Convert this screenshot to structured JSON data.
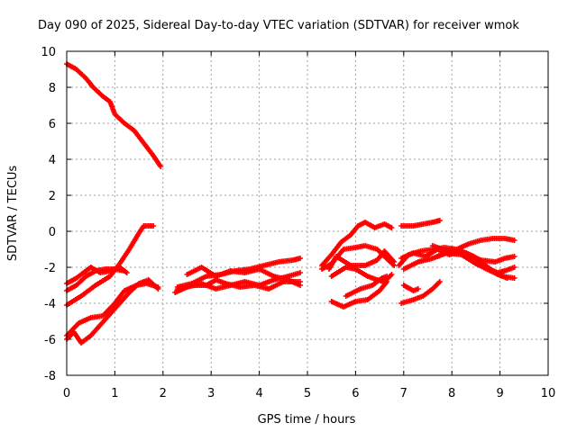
{
  "chart_data": {
    "type": "scatter",
    "title": "Day 090 of 2025, Sidereal Day-to-day VTEC variation (SDTVAR) for receiver wmok",
    "xlabel": "GPS time / hours",
    "ylabel": "SDTVAR / TECUs",
    "xlim": [
      0,
      10
    ],
    "ylim": [
      -8,
      10
    ],
    "xticks": [
      "0",
      "1",
      "2",
      "3",
      "4",
      "5",
      "6",
      "7",
      "8",
      "9",
      "10"
    ],
    "yticks": [
      "10",
      "8",
      "6",
      "4",
      "2",
      "0",
      "-2",
      "-4",
      "-6",
      "-8"
    ],
    "grid": true,
    "marker": "plus",
    "color": "#ff0000",
    "series": [
      {
        "points": [
          [
            0.0,
            9.3
          ],
          [
            0.2,
            9.0
          ],
          [
            0.4,
            8.5
          ],
          [
            0.55,
            8.0
          ],
          [
            0.75,
            7.5
          ],
          [
            0.9,
            7.2
          ],
          [
            1.0,
            6.5
          ],
          [
            1.2,
            6.0
          ],
          [
            1.4,
            5.6
          ],
          [
            1.6,
            4.9
          ],
          [
            1.8,
            4.2
          ],
          [
            1.95,
            3.6
          ]
        ]
      },
      {
        "points": [
          [
            0.0,
            -4.1
          ],
          [
            0.3,
            -3.6
          ],
          [
            0.6,
            -3.0
          ],
          [
            0.9,
            -2.5
          ],
          [
            1.1,
            -1.8
          ],
          [
            1.3,
            -1.0
          ],
          [
            1.5,
            -0.1
          ],
          [
            1.6,
            0.3
          ],
          [
            1.8,
            0.3
          ]
        ]
      },
      {
        "points": [
          [
            0.0,
            -3.3
          ],
          [
            0.2,
            -3.0
          ],
          [
            0.4,
            -2.5
          ],
          [
            0.6,
            -2.2
          ],
          [
            0.8,
            -2.1
          ],
          [
            1.0,
            -2.1
          ],
          [
            1.2,
            -2.2
          ]
        ]
      },
      {
        "points": [
          [
            0.0,
            -2.9
          ],
          [
            0.2,
            -2.6
          ],
          [
            0.4,
            -2.2
          ],
          [
            0.5,
            -2.0
          ],
          [
            0.7,
            -2.3
          ],
          [
            0.9,
            -2.2
          ],
          [
            1.1,
            -2.0
          ],
          [
            1.25,
            -2.3
          ]
        ]
      },
      {
        "points": [
          [
            0.0,
            -6.0
          ],
          [
            0.15,
            -5.6
          ],
          [
            0.3,
            -6.2
          ],
          [
            0.5,
            -5.8
          ],
          [
            0.7,
            -5.2
          ],
          [
            0.9,
            -4.6
          ],
          [
            1.1,
            -4.0
          ],
          [
            1.3,
            -3.4
          ],
          [
            1.5,
            -2.9
          ],
          [
            1.7,
            -2.7
          ],
          [
            1.9,
            -3.2
          ]
        ]
      },
      {
        "points": [
          [
            0.0,
            -5.8
          ],
          [
            0.25,
            -5.1
          ],
          [
            0.5,
            -4.8
          ],
          [
            0.75,
            -4.7
          ],
          [
            1.0,
            -4.0
          ],
          [
            1.2,
            -3.3
          ],
          [
            1.45,
            -3.0
          ],
          [
            1.65,
            -2.9
          ],
          [
            1.9,
            -3.1
          ]
        ]
      },
      {
        "points": [
          [
            2.25,
            -3.4
          ],
          [
            2.5,
            -3.1
          ],
          [
            2.8,
            -2.9
          ],
          [
            3.1,
            -3.2
          ],
          [
            3.4,
            -3.0
          ],
          [
            3.7,
            -2.8
          ],
          [
            4.0,
            -3.0
          ],
          [
            4.3,
            -2.7
          ],
          [
            4.6,
            -2.5
          ],
          [
            4.85,
            -2.3
          ]
        ]
      },
      {
        "points": [
          [
            2.3,
            -3.1
          ],
          [
            2.6,
            -2.9
          ],
          [
            2.9,
            -2.5
          ],
          [
            3.2,
            -2.4
          ],
          [
            3.5,
            -2.2
          ],
          [
            3.8,
            -2.1
          ],
          [
            4.1,
            -1.9
          ],
          [
            4.4,
            -1.7
          ],
          [
            4.7,
            -1.6
          ],
          [
            4.85,
            -1.5
          ]
        ]
      },
      {
        "points": [
          [
            2.3,
            -3.2
          ],
          [
            2.6,
            -3.0
          ],
          [
            2.9,
            -3.0
          ],
          [
            3.1,
            -2.7
          ],
          [
            3.3,
            -2.9
          ],
          [
            3.6,
            -3.1
          ],
          [
            3.9,
            -3.0
          ],
          [
            4.2,
            -3.2
          ],
          [
            4.5,
            -2.8
          ],
          [
            4.85,
            -2.8
          ]
        ]
      },
      {
        "points": [
          [
            2.5,
            -2.4
          ],
          [
            2.8,
            -2.0
          ],
          [
            3.1,
            -2.5
          ],
          [
            3.4,
            -2.2
          ],
          [
            3.7,
            -2.3
          ],
          [
            4.0,
            -2.1
          ],
          [
            4.3,
            -2.5
          ],
          [
            4.6,
            -2.7
          ],
          [
            4.85,
            -3.0
          ]
        ]
      },
      {
        "points": [
          [
            5.3,
            -1.9
          ],
          [
            5.5,
            -1.3
          ],
          [
            5.7,
            -0.6
          ],
          [
            5.9,
            -0.2
          ],
          [
            6.05,
            0.3
          ],
          [
            6.2,
            0.5
          ],
          [
            6.4,
            0.2
          ],
          [
            6.6,
            0.4
          ],
          [
            6.75,
            0.2
          ]
        ]
      },
      {
        "points": [
          [
            5.3,
            -2.1
          ],
          [
            5.5,
            -1.8
          ],
          [
            5.75,
            -1.0
          ],
          [
            6.0,
            -0.9
          ],
          [
            6.2,
            -0.8
          ],
          [
            6.45,
            -1.0
          ],
          [
            6.6,
            -1.4
          ],
          [
            6.8,
            -1.9
          ]
        ]
      },
      {
        "points": [
          [
            5.45,
            -2.1
          ],
          [
            5.6,
            -1.4
          ],
          [
            5.9,
            -1.9
          ],
          [
            6.2,
            -1.9
          ],
          [
            6.45,
            -1.6
          ],
          [
            6.6,
            -1.1
          ],
          [
            6.8,
            -1.7
          ]
        ]
      },
      {
        "points": [
          [
            5.5,
            -2.5
          ],
          [
            5.8,
            -2.0
          ],
          [
            6.0,
            -2.1
          ],
          [
            6.25,
            -2.5
          ],
          [
            6.45,
            -2.7
          ],
          [
            6.6,
            -2.8
          ],
          [
            6.75,
            -2.4
          ]
        ]
      },
      {
        "points": [
          [
            5.5,
            -3.9
          ],
          [
            5.75,
            -4.2
          ],
          [
            6.0,
            -3.9
          ],
          [
            6.25,
            -3.8
          ],
          [
            6.5,
            -3.3
          ],
          [
            6.65,
            -2.8
          ]
        ]
      },
      {
        "points": [
          [
            5.8,
            -3.6
          ],
          [
            6.1,
            -3.2
          ],
          [
            6.35,
            -3.0
          ],
          [
            6.55,
            -2.6
          ],
          [
            6.65,
            -2.5
          ]
        ]
      },
      {
        "points": [
          [
            6.95,
            0.3
          ],
          [
            7.2,
            0.3
          ],
          [
            7.4,
            0.4
          ],
          [
            7.6,
            0.5
          ],
          [
            7.75,
            0.6
          ]
        ]
      },
      {
        "points": [
          [
            6.9,
            -1.9
          ],
          [
            7.1,
            -1.3
          ],
          [
            7.35,
            -1.1
          ],
          [
            7.6,
            -1.0
          ],
          [
            7.85,
            -0.9
          ],
          [
            8.1,
            -1.0
          ],
          [
            8.35,
            -0.7
          ],
          [
            8.6,
            -0.5
          ],
          [
            8.85,
            -0.4
          ],
          [
            9.1,
            -0.4
          ],
          [
            9.3,
            -0.5
          ]
        ]
      },
      {
        "points": [
          [
            6.95,
            -1.5
          ],
          [
            7.2,
            -1.2
          ],
          [
            7.45,
            -1.4
          ],
          [
            7.7,
            -1.0
          ],
          [
            7.95,
            -1.3
          ],
          [
            8.2,
            -1.1
          ],
          [
            8.45,
            -1.4
          ],
          [
            8.7,
            -1.9
          ],
          [
            8.95,
            -2.4
          ],
          [
            9.15,
            -2.6
          ]
        ]
      },
      {
        "points": [
          [
            7.0,
            -2.1
          ],
          [
            7.3,
            -1.7
          ],
          [
            7.6,
            -1.5
          ],
          [
            7.9,
            -1.2
          ],
          [
            8.2,
            -1.3
          ],
          [
            8.5,
            -1.8
          ],
          [
            8.8,
            -2.2
          ],
          [
            9.05,
            -2.5
          ],
          [
            9.3,
            -2.6
          ]
        ]
      },
      {
        "points": [
          [
            7.0,
            -3.0
          ],
          [
            7.2,
            -3.3
          ],
          [
            7.3,
            -3.2
          ]
        ]
      },
      {
        "points": [
          [
            6.95,
            -4.0
          ],
          [
            7.2,
            -3.8
          ],
          [
            7.4,
            -3.6
          ],
          [
            7.6,
            -3.2
          ],
          [
            7.75,
            -2.8
          ]
        ]
      },
      {
        "points": [
          [
            7.6,
            -0.8
          ],
          [
            7.9,
            -1.1
          ],
          [
            8.2,
            -1.2
          ],
          [
            8.45,
            -1.6
          ],
          [
            8.7,
            -2.0
          ],
          [
            8.95,
            -2.3
          ],
          [
            9.1,
            -2.2
          ],
          [
            9.3,
            -2.0
          ]
        ]
      },
      {
        "points": [
          [
            7.7,
            -1.4
          ],
          [
            8.0,
            -1.0
          ],
          [
            8.3,
            -1.2
          ],
          [
            8.6,
            -1.6
          ],
          [
            8.9,
            -1.7
          ],
          [
            9.1,
            -1.5
          ],
          [
            9.3,
            -1.4
          ]
        ]
      }
    ]
  }
}
